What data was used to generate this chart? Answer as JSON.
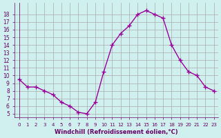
{
  "x": [
    0,
    1,
    2,
    3,
    4,
    5,
    6,
    7,
    8,
    9,
    10,
    11,
    12,
    13,
    14,
    15,
    16,
    17,
    18,
    19,
    20,
    21,
    22,
    23
  ],
  "y": [
    9.5,
    8.5,
    8.5,
    8.0,
    7.5,
    6.5,
    6.0,
    5.2,
    5.0,
    6.5,
    10.5,
    14.0,
    15.5,
    16.5,
    18.0,
    18.5,
    18.0,
    17.5,
    14.0,
    12.0,
    10.5,
    10.0,
    8.5,
    8.0
  ],
  "line_color": "#990099",
  "bg_color": "#d0f0f0",
  "grid_color": "#aaaaaa",
  "xlabel": "Windchill (Refroidissement éolien,°C)",
  "xlabel_color": "#660066",
  "tick_color": "#660066",
  "ylim": [
    4.5,
    19.5
  ],
  "xlim": [
    -0.5,
    23.5
  ],
  "yticks": [
    5,
    6,
    7,
    8,
    9,
    10,
    11,
    12,
    13,
    14,
    15,
    16,
    17,
    18
  ],
  "xticks": [
    0,
    1,
    2,
    3,
    4,
    5,
    6,
    7,
    8,
    9,
    10,
    11,
    12,
    13,
    14,
    15,
    16,
    17,
    18,
    19,
    20,
    21,
    22,
    23
  ]
}
